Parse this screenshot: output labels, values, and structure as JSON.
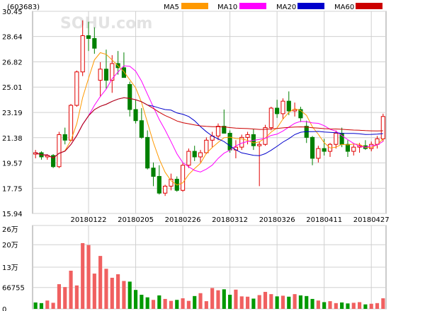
{
  "chart_data": [
    {
      "type": "candlestick",
      "title": "(603683)",
      "watermark": "SOHU.com",
      "ylim": [
        15.94,
        30.45
      ],
      "yticks": [
        "30.45",
        "28.64",
        "26.82",
        "25.01",
        "23.19",
        "21.38",
        "19.57",
        "17.75",
        "15.94"
      ],
      "xtick_labels": [
        "20180122",
        "20180205",
        "20180226",
        "20180312",
        "20180326",
        "20180411",
        "20180427"
      ],
      "xtick_index": [
        9,
        17,
        25,
        33,
        41,
        49,
        57
      ],
      "grid": true,
      "legend_position": "top",
      "up_color": "#e00000",
      "down_color": "#008000",
      "series": [
        {
          "name": "MA5",
          "color": "#ff9900"
        },
        {
          "name": "MA10",
          "color": "#ff00ff"
        },
        {
          "name": "MA20",
          "color": "#0000cc"
        },
        {
          "name": "MA60",
          "color": "#cc0000"
        }
      ],
      "candles": [
        [
          20.2,
          20.5,
          19.9,
          20.3
        ],
        [
          20.3,
          20.4,
          19.8,
          20.0
        ],
        [
          20.0,
          20.2,
          19.8,
          20.1
        ],
        [
          20.1,
          20.2,
          19.2,
          19.3
        ],
        [
          19.3,
          21.8,
          19.2,
          21.6
        ],
        [
          21.6,
          22.1,
          20.9,
          21.2
        ],
        [
          21.2,
          23.8,
          21.1,
          23.7
        ],
        [
          23.7,
          26.2,
          23.6,
          26.1
        ],
        [
          26.1,
          29.8,
          25.8,
          28.7
        ],
        [
          28.7,
          29.7,
          27.6,
          28.5
        ],
        [
          28.5,
          29.3,
          27.4,
          27.8
        ],
        [
          25.5,
          26.8,
          24.3,
          26.3
        ],
        [
          26.3,
          27.7,
          24.9,
          25.5
        ],
        [
          25.5,
          27.3,
          24.6,
          26.7
        ],
        [
          26.7,
          27.6,
          25.9,
          26.4
        ],
        [
          26.4,
          27.5,
          25.8,
          25.7
        ],
        [
          25.2,
          25.4,
          22.9,
          23.4
        ],
        [
          23.4,
          24.1,
          22.4,
          22.6
        ],
        [
          22.6,
          23.5,
          21.3,
          21.4
        ],
        [
          21.4,
          21.9,
          19.1,
          19.2
        ],
        [
          19.2,
          19.6,
          17.9,
          18.6
        ],
        [
          18.6,
          19.4,
          17.3,
          17.4
        ],
        [
          17.4,
          18.0,
          17.2,
          17.9
        ],
        [
          17.9,
          18.8,
          17.6,
          18.4
        ],
        [
          18.4,
          18.6,
          17.5,
          17.6
        ],
        [
          17.6,
          19.6,
          17.5,
          19.4
        ],
        [
          19.4,
          20.6,
          19.2,
          20.4
        ],
        [
          20.4,
          20.8,
          19.7,
          20.0
        ],
        [
          20.0,
          20.5,
          19.6,
          20.3
        ],
        [
          20.3,
          21.4,
          20.2,
          21.2
        ],
        [
          21.2,
          21.8,
          20.7,
          21.5
        ],
        [
          21.5,
          22.4,
          21.2,
          22.2
        ],
        [
          22.2,
          23.4,
          21.8,
          21.7
        ],
        [
          21.7,
          21.9,
          20.3,
          20.5
        ],
        [
          20.5,
          21.2,
          19.9,
          20.7
        ],
        [
          20.7,
          21.6,
          20.5,
          21.4
        ],
        [
          21.4,
          21.8,
          20.9,
          21.6
        ],
        [
          21.6,
          22.0,
          20.5,
          20.8
        ],
        [
          20.8,
          21.1,
          17.9,
          20.9
        ],
        [
          20.9,
          22.3,
          20.8,
          22.1
        ],
        [
          22.1,
          23.6,
          21.9,
          23.5
        ],
        [
          23.5,
          24.1,
          22.8,
          23.1
        ],
        [
          23.1,
          24.2,
          22.7,
          24.0
        ],
        [
          24.0,
          24.7,
          23.0,
          23.3
        ],
        [
          23.3,
          23.9,
          22.9,
          23.4
        ],
        [
          23.4,
          23.6,
          22.5,
          22.8
        ],
        [
          22.2,
          22.6,
          21.0,
          21.4
        ],
        [
          21.4,
          21.5,
          19.4,
          19.9
        ],
        [
          19.9,
          20.8,
          19.6,
          20.6
        ],
        [
          20.6,
          21.3,
          20.1,
          20.4
        ],
        [
          20.4,
          21.0,
          20.0,
          20.9
        ],
        [
          20.9,
          21.9,
          20.6,
          21.7
        ],
        [
          21.7,
          22.1,
          20.7,
          20.9
        ],
        [
          20.9,
          21.2,
          20.0,
          20.4
        ],
        [
          20.4,
          20.9,
          20.1,
          20.7
        ],
        [
          20.7,
          21.0,
          20.3,
          20.8
        ],
        [
          20.8,
          21.2,
          20.5,
          20.6
        ],
        [
          20.6,
          21.1,
          20.4,
          20.9
        ],
        [
          20.9,
          21.5,
          20.6,
          21.3
        ],
        [
          21.3,
          23.1,
          21.1,
          22.9
        ]
      ]
    },
    {
      "type": "bar",
      "ylim": [
        0,
        260000
      ],
      "yticks": [
        "26万",
        "20万",
        "13万",
        "66755",
        "0"
      ],
      "yticks_values": [
        260000,
        200000,
        130000,
        66755,
        0
      ],
      "values": [
        20000,
        18000,
        26000,
        19000,
        77000,
        68000,
        119000,
        73000,
        205000,
        199000,
        110000,
        165000,
        125000,
        97000,
        108000,
        87000,
        85000,
        59000,
        44000,
        36000,
        28000,
        42000,
        31000,
        25000,
        28000,
        33000,
        25000,
        40000,
        49000,
        24000,
        65000,
        58000,
        61000,
        44000,
        60000,
        39000,
        38000,
        32000,
        43000,
        53000,
        46000,
        39000,
        41000,
        38000,
        46000,
        42000,
        40000,
        31000,
        26000,
        21000,
        24000,
        18000,
        20000,
        17000,
        19000,
        21000,
        14000,
        16000,
        18000,
        33000
      ],
      "colors": [
        "down",
        "down",
        "up",
        "up",
        "up",
        "up",
        "up",
        "up",
        "up",
        "up",
        "up",
        "up",
        "up",
        "up",
        "up",
        "up",
        "down",
        "down",
        "down",
        "down",
        "up",
        "down",
        "up",
        "up",
        "down",
        "up",
        "up",
        "down",
        "up",
        "up",
        "up",
        "up",
        "down",
        "down",
        "up",
        "up",
        "up",
        "down",
        "up",
        "up",
        "up",
        "down",
        "up",
        "down",
        "up",
        "down",
        "down",
        "down",
        "up",
        "down",
        "up",
        "up",
        "down",
        "down",
        "up",
        "up",
        "down",
        "up",
        "up",
        "up"
      ]
    }
  ],
  "legend_labels": [
    "MA5",
    "MA10",
    "MA20",
    "MA60"
  ]
}
